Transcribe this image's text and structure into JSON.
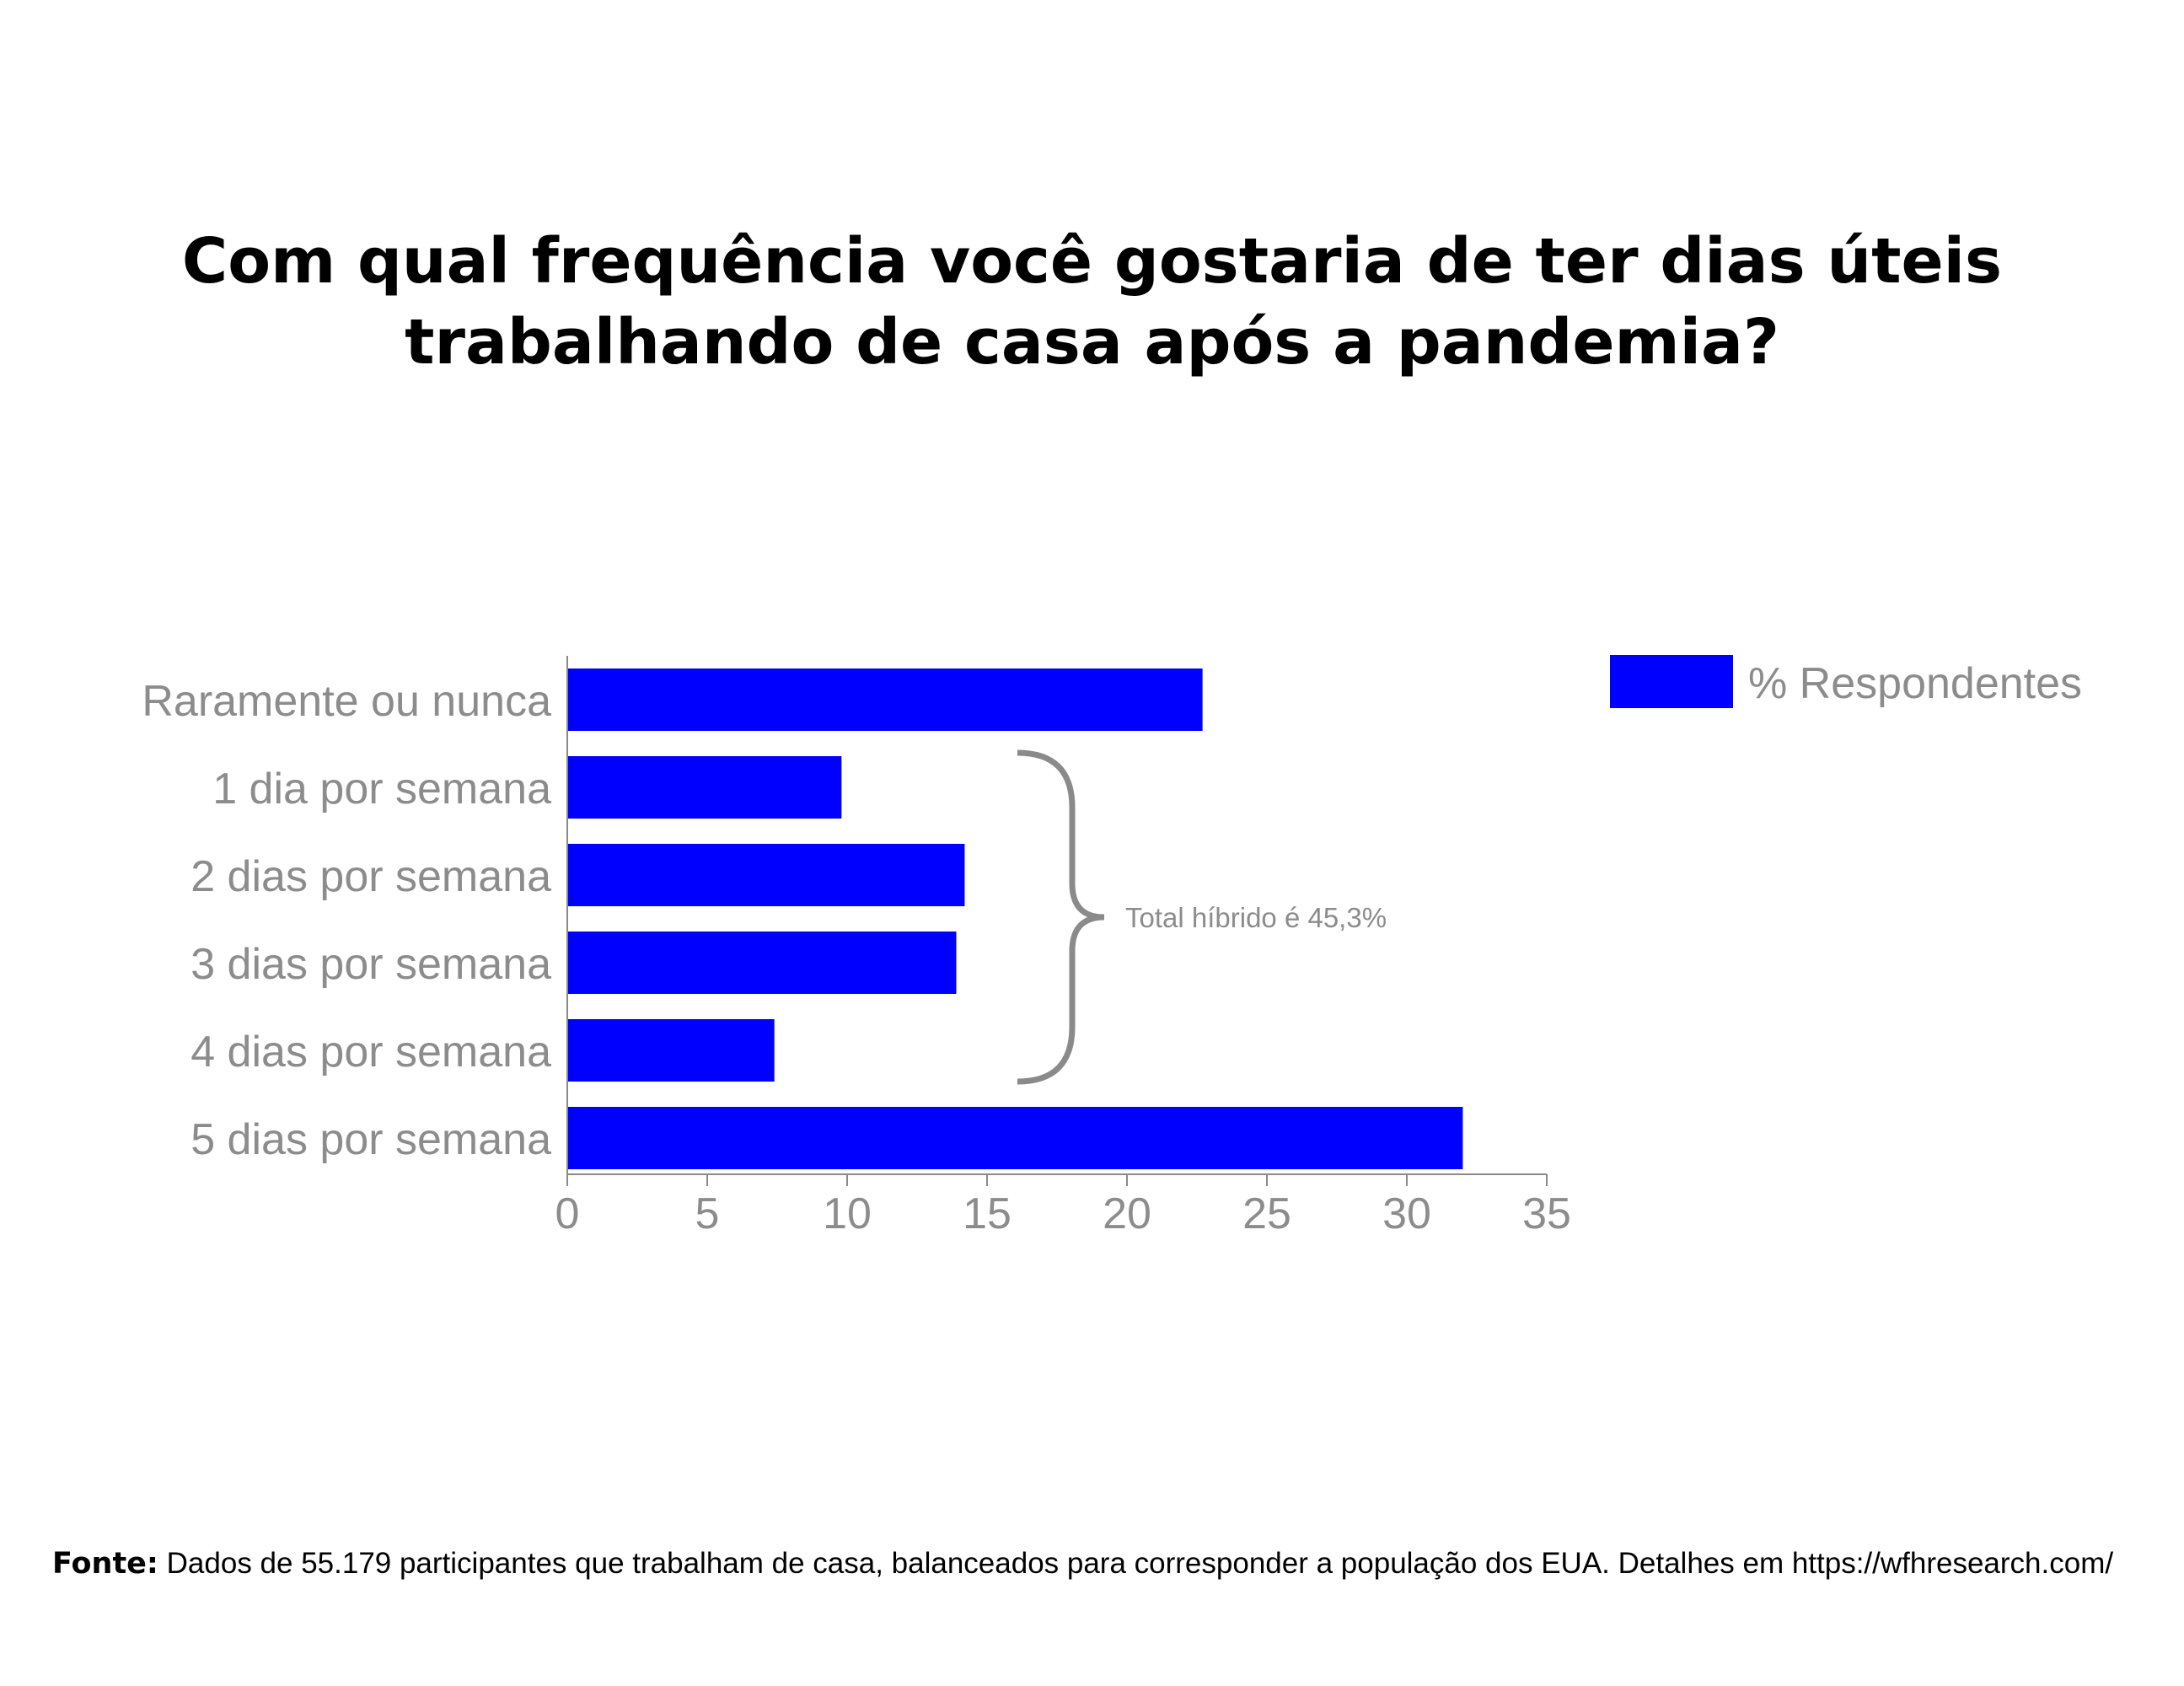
{
  "title": {
    "line1": "Com qual frequência você gostaria de ter dias úteis",
    "line2": "trabalhando de casa após a pandemia?"
  },
  "colors": {
    "bar": "#0000ff",
    "axis": "#8a8a8a",
    "text_muted": "#8c8c8c",
    "title": "#000000"
  },
  "chart_data": {
    "type": "bar",
    "orientation": "horizontal",
    "categories": [
      "Raramente ou nunca",
      "1 dia por semana",
      "2 dias por semana",
      "3 dias por semana",
      "4 dias por semana",
      "5 dias por semana"
    ],
    "series": [
      {
        "name": "% Respondentes",
        "values": [
          22.7,
          9.8,
          14.2,
          13.9,
          7.4,
          32.0
        ]
      }
    ],
    "xlim": [
      0,
      35
    ],
    "xticks": [
      "0",
      "5",
      "10",
      "15",
      "20",
      "25",
      "30",
      "35"
    ],
    "grid": false,
    "legend_position": "top-right",
    "annotation": {
      "text": "Total híbrido é 45,3%",
      "spans_categories": [
        "1 dia por semana",
        "4 dias por semana"
      ]
    }
  },
  "footer": {
    "label": "Fonte:",
    "text": " Dados de 55.179 participantes que trabalham de casa, balanceados para corresponder a população dos EUA. Detalhes em https://wfhresearch.com/"
  }
}
